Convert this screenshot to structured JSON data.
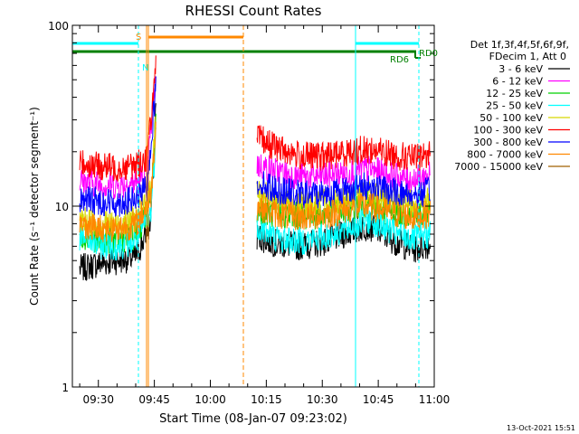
{
  "chart_data": {
    "type": "line",
    "title": "RHESSI Count Rates",
    "xlabel": "Start Time (08-Jan-07 09:23:02)",
    "ylabel": "Count Rate (s⁻¹ detector segment⁻¹)",
    "yscale": "log",
    "ylim": [
      1,
      100
    ],
    "xlim": [
      "09:23:02",
      "11:00:00"
    ],
    "x_tick_labels": [
      "09:30",
      "09:45",
      "10:00",
      "10:15",
      "10:30",
      "10:45",
      "11:00"
    ],
    "x_tick_minutes": [
      570,
      585,
      600,
      615,
      630,
      645,
      660
    ],
    "y_tick_labels": [
      "1",
      "10",
      "100"
    ],
    "y_tick_values": [
      1,
      10,
      100
    ],
    "legend_header": [
      "Det 1f,3f,4f,5f,6f,9f,",
      "FDecim 1, Att 0"
    ],
    "legend_position": "right",
    "timestamp": "13-Oct-2021 15:51",
    "data_gap": [
      "09:46",
      "10:12"
    ],
    "series": [
      {
        "name": "3 - 6 keV",
        "color": "#000000",
        "points": [
          [
            565,
            4.5
          ],
          [
            570,
            4.8
          ],
          [
            575,
            5.0
          ],
          [
            580,
            5.2
          ],
          [
            584,
            8
          ],
          [
            585.5,
            40
          ],
          [
            612.5,
            6.8
          ],
          [
            618,
            6.2
          ],
          [
            624,
            6.0
          ],
          [
            630,
            6.3
          ],
          [
            636,
            7.0
          ],
          [
            642,
            7.8
          ],
          [
            645,
            7.3
          ],
          [
            650,
            6.3
          ],
          [
            655,
            5.8
          ],
          [
            659,
            6.2
          ]
        ]
      },
      {
        "name": "6 - 12 keV",
        "color": "#ff00ff",
        "points": [
          [
            565,
            13.8
          ],
          [
            570,
            13.2
          ],
          [
            575,
            13.0
          ],
          [
            580,
            13.5
          ],
          [
            583,
            15
          ],
          [
            585.5,
            55
          ],
          [
            612.5,
            17
          ],
          [
            618,
            15.5
          ],
          [
            624,
            14.5
          ],
          [
            630,
            14.6
          ],
          [
            636,
            15.3
          ],
          [
            642,
            16
          ],
          [
            645,
            15.5
          ],
          [
            650,
            14.5
          ],
          [
            655,
            14
          ],
          [
            659,
            15
          ]
        ]
      },
      {
        "name": "12 - 25 keV",
        "color": "#00d000",
        "points": [
          [
            565,
            7.0
          ],
          [
            570,
            6.6
          ],
          [
            575,
            6.5
          ],
          [
            580,
            6.9
          ],
          [
            584,
            10
          ],
          [
            585.5,
            32
          ],
          [
            612.5,
            9.5
          ],
          [
            618,
            9.0
          ],
          [
            624,
            8.8
          ],
          [
            630,
            9.0
          ],
          [
            636,
            9.6
          ],
          [
            642,
            10.2
          ],
          [
            645,
            9.8
          ],
          [
            650,
            9.2
          ],
          [
            655,
            8.9
          ],
          [
            659,
            9.3
          ]
        ]
      },
      {
        "name": "25 - 50 keV",
        "color": "#00ffff",
        "points": [
          [
            565,
            6.8
          ],
          [
            570,
            6.1
          ],
          [
            575,
            6.0
          ],
          [
            580,
            6.4
          ],
          [
            584,
            9
          ],
          [
            585.5,
            26
          ],
          [
            612.5,
            7.8
          ],
          [
            618,
            6.6
          ],
          [
            624,
            6.4
          ],
          [
            630,
            6.7
          ],
          [
            636,
            7.4
          ],
          [
            642,
            8.4
          ],
          [
            645,
            8.0
          ],
          [
            650,
            7.0
          ],
          [
            655,
            6.6
          ],
          [
            659,
            7.0
          ]
        ]
      },
      {
        "name": "50 - 100 keV",
        "color": "#d8d800",
        "points": [
          [
            565,
            8.5
          ],
          [
            570,
            8.0
          ],
          [
            575,
            8.0
          ],
          [
            580,
            8.6
          ],
          [
            584,
            12
          ],
          [
            585.5,
            34
          ],
          [
            612.5,
            12
          ],
          [
            618,
            10.5
          ],
          [
            624,
            10.0
          ],
          [
            630,
            10.4
          ],
          [
            636,
            11.0
          ],
          [
            642,
            11.5
          ],
          [
            645,
            11.2
          ],
          [
            650,
            10.6
          ],
          [
            655,
            10.3
          ],
          [
            659,
            10.8
          ]
        ]
      },
      {
        "name": "100 - 300 keV",
        "color": "#ff0000",
        "points": [
          [
            565,
            17.5
          ],
          [
            570,
            16.6
          ],
          [
            575,
            16.3
          ],
          [
            580,
            16.8
          ],
          [
            583,
            18.5
          ],
          [
            585.5,
            60
          ],
          [
            612.5,
            24
          ],
          [
            618,
            21
          ],
          [
            624,
            19
          ],
          [
            630,
            18.8
          ],
          [
            636,
            19.8
          ],
          [
            642,
            20.6
          ],
          [
            645,
            20.2
          ],
          [
            650,
            19
          ],
          [
            655,
            18.4
          ],
          [
            659,
            19.5
          ]
        ]
      },
      {
        "name": "300 - 800 keV",
        "color": "#0000ff",
        "points": [
          [
            565,
            11.0
          ],
          [
            570,
            10.6
          ],
          [
            575,
            10.4
          ],
          [
            580,
            10.8
          ],
          [
            583,
            12.5
          ],
          [
            585.5,
            48
          ],
          [
            612.5,
            13.6
          ],
          [
            618,
            12.3
          ],
          [
            624,
            11.6
          ],
          [
            630,
            11.7
          ],
          [
            636,
            12.3
          ],
          [
            642,
            12.9
          ],
          [
            645,
            12.6
          ],
          [
            650,
            11.9
          ],
          [
            655,
            11.5
          ],
          [
            659,
            12.2
          ]
        ]
      },
      {
        "name": "800 - 7000 keV",
        "color": "#ff8800",
        "points": [
          [
            565,
            8.0
          ],
          [
            570,
            7.6
          ],
          [
            575,
            7.5
          ],
          [
            580,
            7.9
          ],
          [
            584,
            11
          ],
          [
            585.5,
            30
          ],
          [
            612.5,
            10
          ],
          [
            618,
            9.0
          ],
          [
            624,
            8.7
          ],
          [
            630,
            8.9
          ],
          [
            636,
            9.5
          ],
          [
            642,
            10.0
          ],
          [
            645,
            9.6
          ],
          [
            650,
            9.0
          ],
          [
            655,
            8.7
          ],
          [
            659,
            9.1
          ]
        ]
      },
      {
        "name": "7000 - 15000 keV",
        "color": "#a06000",
        "points": []
      }
    ],
    "annotations": [
      {
        "text": "S",
        "color": "#ff8800"
      },
      {
        "text": "N",
        "color": "#00ffff"
      },
      {
        "text": "RD0",
        "color": "#008000"
      },
      {
        "text": "RD6",
        "color": "#008000"
      }
    ]
  }
}
